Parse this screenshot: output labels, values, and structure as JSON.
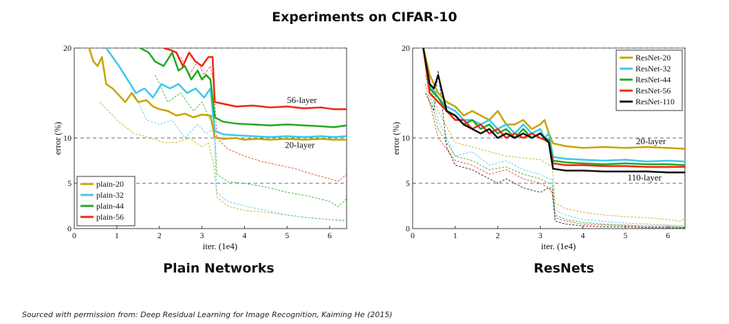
{
  "title": "Experiments on CIFAR-10",
  "source_text": "Sourced with permission from: Deep Residual Learning for Image Recognition, Kaiming He (2015)",
  "chart_data": [
    {
      "type": "line",
      "caption": "Plain Networks",
      "xlabel": "iter. (1e4)",
      "ylabel": "error (%)",
      "xlim": [
        0,
        6.4
      ],
      "ylim": [
        0,
        20
      ],
      "xticks": [
        "0",
        "1",
        "2",
        "3",
        "4",
        "5",
        "6"
      ],
      "yticks": [
        "0",
        "5",
        "10",
        "20"
      ],
      "reference_lines": [
        5,
        10,
        20
      ],
      "legend_position": "bottom-left",
      "annotations": [
        {
          "text": "56-layer",
          "x": 5.35,
          "y": 13.9
        },
        {
          "text": "20-layer",
          "x": 5.3,
          "y": 8.9
        }
      ],
      "series": [
        {
          "name": "plain-20",
          "color": "#c8a400",
          "test_x": [
            0.35,
            0.45,
            0.55,
            0.65,
            0.75,
            0.9,
            1.0,
            1.2,
            1.35,
            1.5,
            1.7,
            1.85,
            2.0,
            2.2,
            2.4,
            2.6,
            2.8,
            3.0,
            3.2,
            3.3,
            3.5,
            3.8,
            4.0,
            4.3,
            4.6,
            5.0,
            5.4,
            5.8,
            6.1,
            6.4
          ],
          "test_y": [
            20,
            18.5,
            18.0,
            19.0,
            16.0,
            15.5,
            15.0,
            14.0,
            15.0,
            14.0,
            14.2,
            13.5,
            13.2,
            13.0,
            12.5,
            12.7,
            12.3,
            12.6,
            12.5,
            10.1,
            9.9,
            10.0,
            9.8,
            9.9,
            9.8,
            9.9,
            9.8,
            9.9,
            9.8,
            9.8
          ],
          "train_x": [
            0.6,
            1.0,
            1.4,
            1.8,
            2.1,
            2.4,
            2.7,
            3.0,
            3.15,
            3.28,
            3.35,
            3.6,
            4.0,
            4.5,
            5.0,
            5.5,
            6.0,
            6.4
          ],
          "train_y": [
            14,
            12,
            10.5,
            10,
            9.5,
            9.5,
            10,
            9,
            9.5,
            7,
            3.5,
            2.5,
            2.0,
            1.8,
            1.5,
            1.2,
            1.0,
            0.8
          ]
        },
        {
          "name": "plain-32",
          "color": "#3cc8f0",
          "test_x": [
            0.75,
            0.9,
            1.05,
            1.25,
            1.45,
            1.65,
            1.85,
            2.05,
            2.25,
            2.45,
            2.65,
            2.85,
            3.05,
            3.2,
            3.3,
            3.5,
            3.8,
            4.2,
            4.6,
            5.0,
            5.4,
            5.8,
            6.1,
            6.4
          ],
          "test_y": [
            20,
            19.0,
            18.0,
            16.5,
            15.0,
            15.5,
            14.5,
            16.0,
            15.5,
            16.0,
            15.0,
            15.5,
            14.5,
            15.5,
            10.8,
            10.4,
            10.3,
            10.2,
            10.1,
            10.2,
            10.1,
            10.2,
            10.1,
            10.2
          ],
          "train_x": [
            1.4,
            1.7,
            2.0,
            2.3,
            2.6,
            2.9,
            3.1,
            3.28,
            3.35,
            3.6,
            4.0,
            4.5,
            5.0,
            5.5,
            6.0,
            6.4
          ],
          "train_y": [
            15,
            12,
            11.5,
            12,
            10,
            11.5,
            10.5,
            11,
            4,
            3,
            2.5,
            2,
            1.5,
            1.2,
            1,
            0.9
          ]
        },
        {
          "name": "plain-44",
          "color": "#22aa22",
          "test_x": [
            1.55,
            1.75,
            1.9,
            2.1,
            2.3,
            2.45,
            2.6,
            2.75,
            2.9,
            3.0,
            3.1,
            3.2,
            3.3,
            3.5,
            3.8,
            4.2,
            4.6,
            5.0,
            5.4,
            5.8,
            6.1,
            6.4
          ],
          "test_y": [
            20,
            19.5,
            18.5,
            18.0,
            19.5,
            17.5,
            18.0,
            16.5,
            17.5,
            16.5,
            17.0,
            16.5,
            12.3,
            11.8,
            11.6,
            11.5,
            11.4,
            11.5,
            11.4,
            11.3,
            11.2,
            11.4
          ],
          "train_x": [
            1.9,
            2.2,
            2.5,
            2.8,
            3.0,
            3.2,
            3.28,
            3.35,
            3.6,
            4.0,
            4.5,
            5.0,
            5.5,
            6.0,
            6.2,
            6.4
          ],
          "train_y": [
            17,
            14,
            15,
            13,
            14,
            12,
            13,
            6,
            5.2,
            5.0,
            4.6,
            4.0,
            3.6,
            3.0,
            2.4,
            3.3
          ]
        },
        {
          "name": "plain-56",
          "color": "#ee2a10",
          "test_x": [
            2.1,
            2.25,
            2.4,
            2.55,
            2.7,
            2.85,
            3.0,
            3.15,
            3.25,
            3.3,
            3.5,
            3.8,
            4.2,
            4.6,
            5.0,
            5.4,
            5.8,
            6.1,
            6.4
          ],
          "test_y": [
            20,
            19.8,
            19.5,
            18.0,
            19.5,
            18.5,
            18.0,
            19.0,
            19.0,
            14.0,
            13.8,
            13.5,
            13.6,
            13.4,
            13.5,
            13.3,
            13.4,
            13.2,
            13.2
          ],
          "train_x": [
            2.5,
            2.7,
            2.9,
            3.05,
            3.2,
            3.28,
            3.35,
            3.6,
            4.0,
            4.4,
            4.8,
            5.2,
            5.6,
            6.0,
            6.2,
            6.4
          ],
          "train_y": [
            19,
            17,
            18.5,
            17,
            18,
            16,
            10,
            8.8,
            8.0,
            7.4,
            7.0,
            6.6,
            6.0,
            5.5,
            5.2,
            6.0
          ]
        }
      ]
    },
    {
      "type": "line",
      "caption": "ResNets",
      "xlabel": "iter. (1e4)",
      "ylabel": "error (%)",
      "xlim": [
        0,
        6.4
      ],
      "ylim": [
        0,
        20
      ],
      "xticks": [
        "0",
        "1",
        "2",
        "3",
        "4",
        "5",
        "6"
      ],
      "yticks": [
        "0",
        "5",
        "10",
        "20"
      ],
      "reference_lines": [
        5,
        10,
        20
      ],
      "legend_position": "top-right",
      "annotations": [
        {
          "text": "20-layer",
          "x": 5.6,
          "y": 9.3
        },
        {
          "text": "110-layer",
          "x": 5.45,
          "y": 5.3
        }
      ],
      "series": [
        {
          "name": "ResNet-20",
          "color": "#c8a400",
          "test_x": [
            0.25,
            0.4,
            0.6,
            0.8,
            1.0,
            1.2,
            1.4,
            1.6,
            1.8,
            2.0,
            2.2,
            2.4,
            2.6,
            2.8,
            3.0,
            3.1,
            3.2,
            3.3,
            3.6,
            4.0,
            4.5,
            5.0,
            5.5,
            6.0,
            6.4
          ],
          "test_y": [
            20,
            17.0,
            15.0,
            14.0,
            13.5,
            12.5,
            13.0,
            12.5,
            12.0,
            13.0,
            11.5,
            11.5,
            12.0,
            11.0,
            11.5,
            12.0,
            10.5,
            9.4,
            9.1,
            8.9,
            9.0,
            8.9,
            9.0,
            8.9,
            8.8
          ],
          "train_x": [
            0.3,
            0.6,
            1.0,
            1.4,
            1.8,
            2.2,
            2.6,
            3.0,
            3.2,
            3.28,
            3.35,
            3.6,
            4.0,
            4.5,
            5.0,
            5.5,
            6.0,
            6.3,
            6.4
          ],
          "train_y": [
            18,
            13,
            9.5,
            9.0,
            8.5,
            8.0,
            7.8,
            7.6,
            7.0,
            7.0,
            2.8,
            2.2,
            1.8,
            1.5,
            1.3,
            1.2,
            1.0,
            0.8,
            1.2
          ]
        },
        {
          "name": "ResNet-32",
          "color": "#3cc8f0",
          "test_x": [
            0.25,
            0.4,
            0.6,
            0.8,
            1.0,
            1.2,
            1.4,
            1.6,
            1.8,
            2.0,
            2.2,
            2.4,
            2.6,
            2.8,
            3.0,
            3.1,
            3.2,
            3.3,
            3.6,
            4.0,
            4.5,
            5.0,
            5.5,
            6.0,
            6.4
          ],
          "test_y": [
            20,
            16.0,
            14.5,
            13.5,
            13.0,
            12.0,
            12.0,
            11.5,
            12.0,
            11.0,
            11.5,
            10.5,
            11.5,
            10.5,
            11.0,
            10.0,
            10.5,
            7.9,
            7.7,
            7.6,
            7.5,
            7.6,
            7.4,
            7.5,
            7.4
          ],
          "train_x": [
            0.3,
            0.6,
            1.0,
            1.4,
            1.8,
            2.2,
            2.6,
            3.0,
            3.2,
            3.28,
            3.35,
            3.6,
            4.0,
            4.5,
            5.0,
            5.5,
            6.0,
            6.4
          ],
          "train_y": [
            18,
            12,
            8,
            8.5,
            7.0,
            7.5,
            6.5,
            6.0,
            5.5,
            5.5,
            2.0,
            1.5,
            1.0,
            0.8,
            0.6,
            0.5,
            0.4,
            0.3
          ]
        },
        {
          "name": "ResNet-44",
          "color": "#22aa22",
          "test_x": [
            0.25,
            0.4,
            0.6,
            0.8,
            1.0,
            1.2,
            1.4,
            1.6,
            1.8,
            2.0,
            2.2,
            2.4,
            2.6,
            2.8,
            3.0,
            3.1,
            3.2,
            3.3,
            3.6,
            4.0,
            4.5,
            5.0,
            5.5,
            6.0,
            6.4
          ],
          "test_y": [
            20,
            15.5,
            14.5,
            13.0,
            12.5,
            11.5,
            12.0,
            11.0,
            11.5,
            10.5,
            11.0,
            10.0,
            11.0,
            10.0,
            10.5,
            10.0,
            9.8,
            7.5,
            7.3,
            7.2,
            7.1,
            7.2,
            7.1,
            7.1,
            7.0
          ],
          "train_x": [
            0.3,
            0.6,
            1.0,
            1.4,
            1.8,
            2.2,
            2.6,
            3.0,
            3.2,
            3.28,
            3.35,
            3.6,
            4.0,
            4.5,
            5.0,
            5.5,
            6.0,
            6.4
          ],
          "train_y": [
            17,
            11,
            8,
            7.5,
            6.5,
            6.8,
            6.0,
            5.5,
            5.0,
            5.0,
            1.5,
            1.0,
            0.7,
            0.5,
            0.4,
            0.3,
            0.3,
            0.2
          ]
        },
        {
          "name": "ResNet-56",
          "color": "#ee2a10",
          "test_x": [
            0.25,
            0.4,
            0.6,
            0.8,
            1.0,
            1.2,
            1.4,
            1.6,
            1.8,
            2.0,
            2.2,
            2.4,
            2.6,
            2.8,
            3.0,
            3.1,
            3.2,
            3.3,
            3.6,
            4.0,
            4.5,
            5.0,
            5.5,
            6.0,
            6.4
          ],
          "test_y": [
            20,
            15.0,
            14.0,
            13.0,
            12.0,
            12.0,
            11.0,
            11.5,
            10.5,
            11.0,
            10.0,
            10.5,
            10.0,
            10.5,
            10.0,
            9.8,
            9.5,
            7.2,
            7.0,
            7.0,
            6.9,
            6.9,
            6.8,
            6.8,
            6.8
          ],
          "train_x": [
            0.3,
            0.6,
            1.0,
            1.4,
            1.8,
            2.2,
            2.6,
            3.0,
            3.2,
            3.28,
            3.35,
            3.6,
            4.0,
            4.5,
            5.0,
            5.5,
            6.0,
            6.4
          ],
          "train_y": [
            16,
            10,
            7.5,
            7.0,
            6.0,
            6.5,
            5.5,
            5.0,
            4.5,
            4.5,
            1.2,
            0.8,
            0.5,
            0.4,
            0.3,
            0.2,
            0.2,
            0.1
          ]
        },
        {
          "name": "ResNet-110",
          "color": "#111111",
          "test_x": [
            0.25,
            0.4,
            0.5,
            0.6,
            0.8,
            1.0,
            1.2,
            1.4,
            1.6,
            1.8,
            2.0,
            2.2,
            2.4,
            2.6,
            2.8,
            3.0,
            3.1,
            3.2,
            3.3,
            3.6,
            4.0,
            4.5,
            5.0,
            5.5,
            6.0,
            6.4
          ],
          "test_y": [
            20,
            16.0,
            15.5,
            17.0,
            13.0,
            12.5,
            11.5,
            11.0,
            10.5,
            11.0,
            10.0,
            10.5,
            10.0,
            10.5,
            10.0,
            10.5,
            10.0,
            9.5,
            6.6,
            6.4,
            6.4,
            6.3,
            6.3,
            6.3,
            6.2,
            6.2
          ],
          "train_x": [
            0.3,
            0.5,
            0.6,
            0.8,
            1.0,
            1.4,
            1.8,
            2.0,
            2.2,
            2.6,
            3.0,
            3.2,
            3.28,
            3.35,
            3.6,
            4.0,
            4.5,
            5.0,
            5.5,
            6.0,
            6.4
          ],
          "train_y": [
            15,
            13,
            17.5,
            9,
            7,
            6.5,
            5.5,
            5.0,
            5.5,
            4.5,
            4.0,
            4.5,
            4.0,
            0.8,
            0.5,
            0.3,
            0.2,
            0.2,
            0.1,
            0.1,
            0.1
          ]
        }
      ]
    }
  ]
}
